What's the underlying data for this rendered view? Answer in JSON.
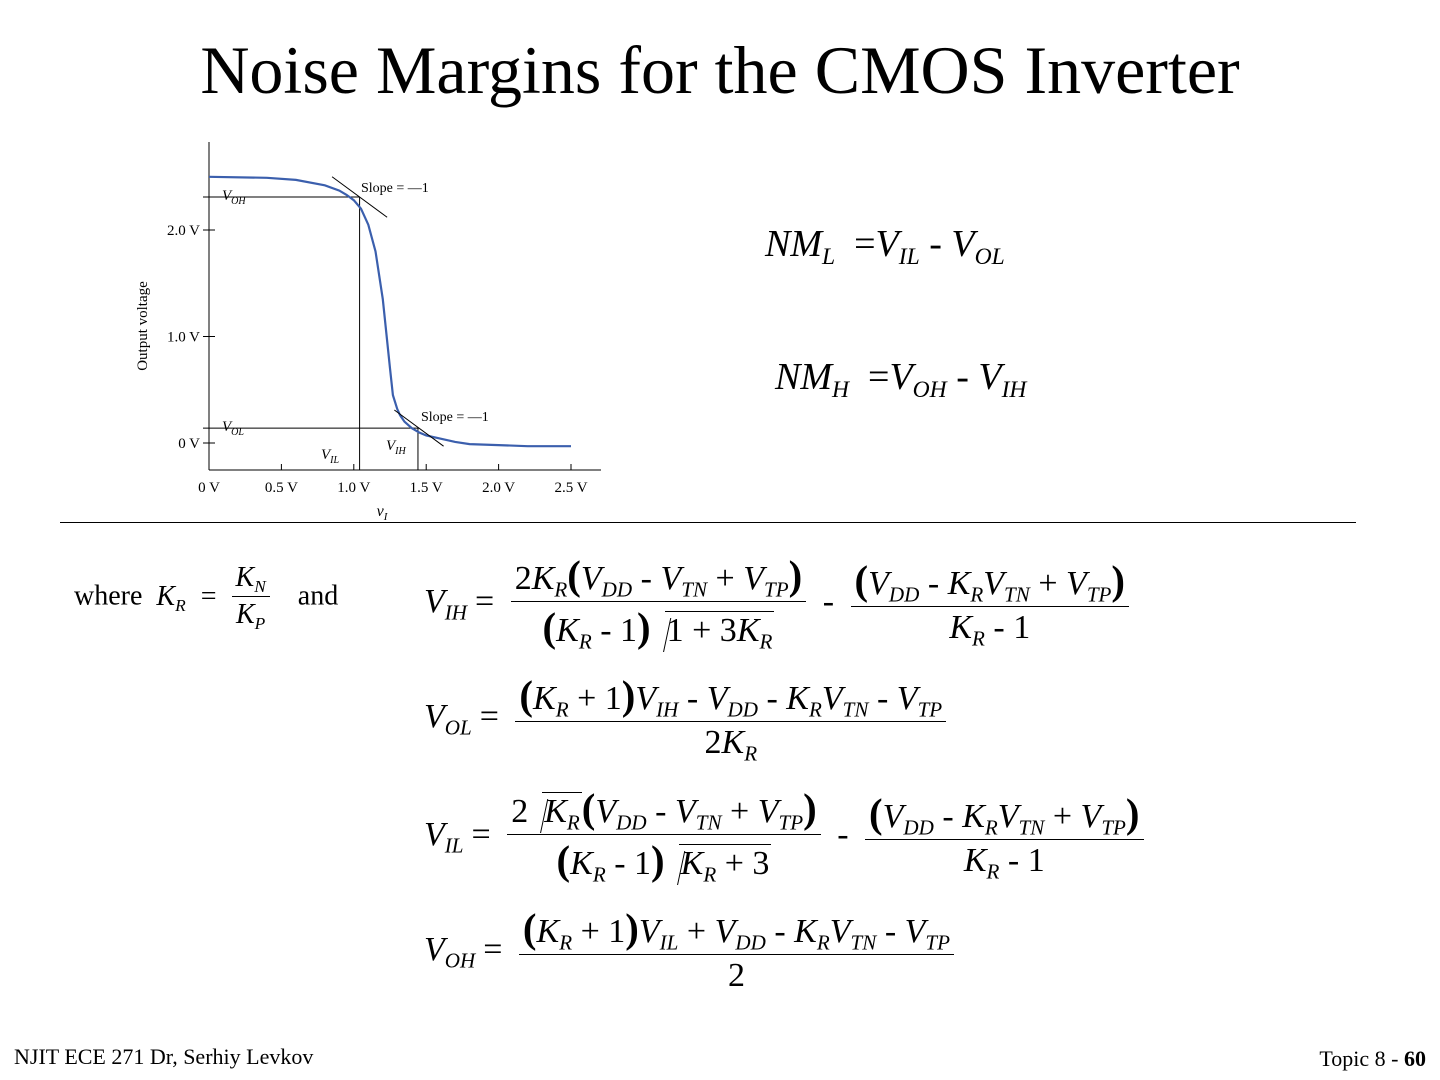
{
  "slide": {
    "title": "Noise Margins for the CMOS Inverter",
    "footer_left": "NJIT ECE 271  Dr, Serhiy Levkov",
    "footer_topic": "Topic 8 - ",
    "footer_page": "60"
  },
  "chart_data": {
    "type": "line",
    "title": "",
    "xlabel": "v_I",
    "ylabel": "Output voltage",
    "xlim": [
      0,
      2.7
    ],
    "ylim": [
      -0.25,
      3.05
    ],
    "x_ticks": [
      "0 V",
      "0.5 V",
      "1.0 V",
      "1.5 V",
      "2.0 V",
      "2.5 V"
    ],
    "y_ticks": [
      "0 V",
      "1.0 V",
      "2.0 V"
    ],
    "series": [
      {
        "x": [
          0,
          0.4,
          0.6,
          0.8,
          0.9,
          0.95,
          1.0,
          1.05,
          1.1,
          1.15,
          1.2,
          1.25,
          1.27,
          1.3,
          1.32,
          1.35,
          1.4,
          1.45,
          1.5,
          1.6,
          1.7,
          1.8,
          2.0,
          2.2,
          2.4,
          2.5
        ],
        "y": [
          2.5,
          2.49,
          2.47,
          2.42,
          2.37,
          2.33,
          2.28,
          2.2,
          2.05,
          1.8,
          1.35,
          0.7,
          0.45,
          0.32,
          0.26,
          0.2,
          0.14,
          0.1,
          0.07,
          0.04,
          0.01,
          -0.01,
          -0.02,
          -0.03,
          -0.03,
          -0.03
        ]
      }
    ],
    "annotations": {
      "voh_label": "V_OH",
      "voh_value": 2.31,
      "vol_label": "V_OL",
      "vol_value": 0.14,
      "vil_label": "V_IL",
      "vil_value": 1.04,
      "vih_label": "V_IH",
      "vih_value": 1.45,
      "slope_label": "Slope = —1"
    }
  },
  "equations": {
    "where_text": "where",
    "and_text": "and"
  }
}
